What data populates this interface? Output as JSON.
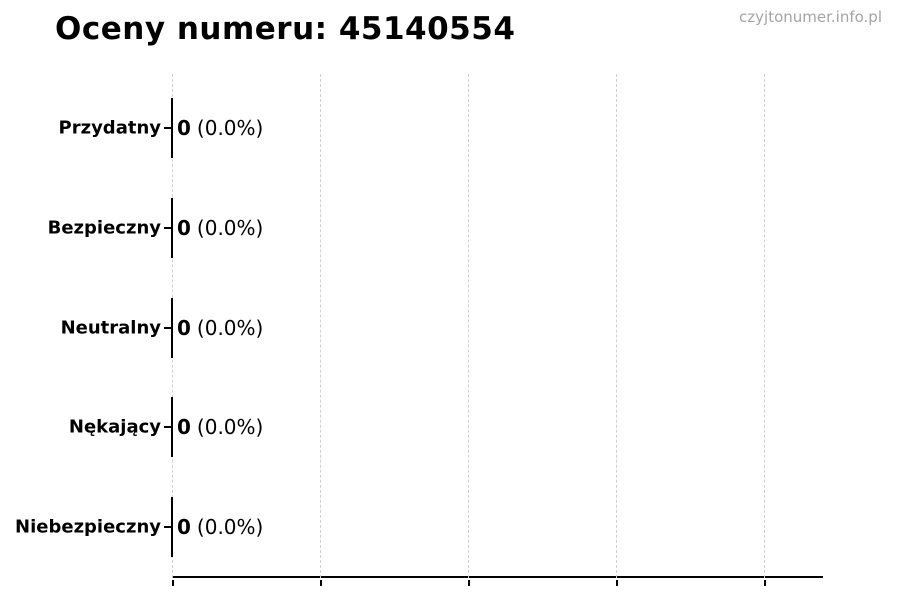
{
  "page": {
    "title": "Oceny numeru: 45140554",
    "watermark": "czyjtonumer.info.pl"
  },
  "colors": {
    "text": "#000000",
    "watermark": "#a4a4a4",
    "gridline": "#d0d0d0",
    "axis": "#000000",
    "bar_edge": "#000000",
    "background": "#ffffff"
  },
  "chart_data": {
    "type": "bar",
    "orientation": "horizontal",
    "title": "Oceny numeru: 45140554",
    "categories": [
      "Przydatny",
      "Bezpieczny",
      "Neutralny",
      "Nękający",
      "Niebezpieczny"
    ],
    "values": [
      0,
      0,
      0,
      0,
      0
    ],
    "percent": [
      0.0,
      0.0,
      0.0,
      0.0,
      0.0
    ],
    "bar_labels": [
      "0 (0.0%)",
      "0 (0.0%)",
      "0 (0.0%)",
      "0 (0.0%)",
      "0 (0.0%)"
    ],
    "xlim": [
      0,
      1.1
    ],
    "x_ticks": [
      0,
      0.25,
      0.5,
      0.75,
      1.0
    ],
    "x_tick_labels": [],
    "grid": "vertical-dashed",
    "legend": "none"
  }
}
